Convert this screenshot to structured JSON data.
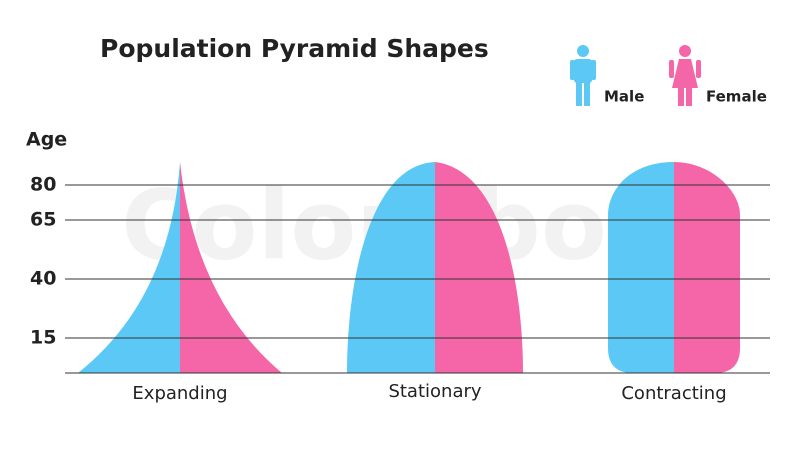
{
  "header": {
    "title": "Population Pyramid Shapes"
  },
  "legend": {
    "male": "Male",
    "female": "Female"
  },
  "axis": {
    "label": "Age",
    "ticks": [
      "80",
      "65",
      "40",
      "15"
    ]
  },
  "shapes": {
    "labels": [
      "Expanding",
      "Stationary",
      "Contracting"
    ]
  },
  "watermark": "Colourbox"
}
